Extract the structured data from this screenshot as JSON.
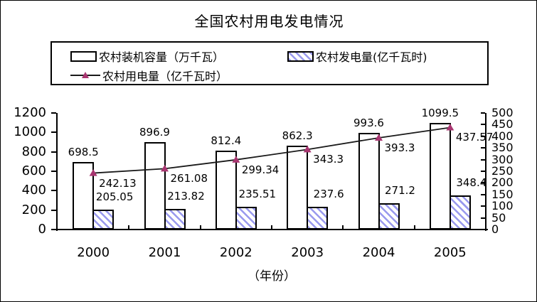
{
  "chart_data": {
    "type": "bar",
    "combo": "bars+line",
    "title": "全国农村用电发电情况",
    "x_axis_label": "（年份）",
    "categories": [
      "2000",
      "2001",
      "2002",
      "2003",
      "2004",
      "2005"
    ],
    "series": [
      {
        "name": "农村装机容量（万千瓦）",
        "type": "bar",
        "style": "white-outline",
        "axis": "left",
        "values": [
          698.5,
          896.9,
          812.4,
          862.3,
          993.6,
          1099.5
        ],
        "labels": [
          "698.5",
          "896.9",
          "812.4",
          "862.3",
          "993.6",
          "1099.5"
        ]
      },
      {
        "name": "农村发电量(亿千瓦时)",
        "type": "bar",
        "style": "hatched",
        "axis": "left",
        "values": [
          205.05,
          213.82,
          235.51,
          237.6,
          271.2,
          348.4
        ],
        "labels": [
          "205.05",
          "213.82",
          "235.51",
          "237.6",
          "271.2",
          "348.4"
        ]
      },
      {
        "name": "农村用电量（亿千瓦时）",
        "type": "line",
        "style": "line-triangle-markers",
        "axis": "right",
        "values": [
          242.13,
          261.08,
          299.34,
          343.3,
          393.3,
          437.57
        ],
        "labels": [
          "242.13",
          "261.08",
          "299.34",
          "343.3",
          "393.3",
          "437.57"
        ]
      }
    ],
    "left_axis": {
      "min": 0,
      "max": 1200,
      "step": 200,
      "ticks": [
        "1200",
        "1000",
        "800",
        "600",
        "400",
        "200",
        "0"
      ]
    },
    "right_axis": {
      "min": 0,
      "max": 500,
      "step": 50,
      "ticks": [
        "500",
        "450",
        "400",
        "350",
        "300",
        "250",
        "200",
        "150",
        "100",
        "50",
        "0"
      ]
    },
    "legend_position": "top",
    "grid": false,
    "colors": {
      "background": "#FFFFFF",
      "bar_outline": "#000000",
      "hatch_stripe": "#9999EE",
      "line": "#1A1A1A",
      "marker": "#A83570",
      "text": "#000000"
    }
  }
}
